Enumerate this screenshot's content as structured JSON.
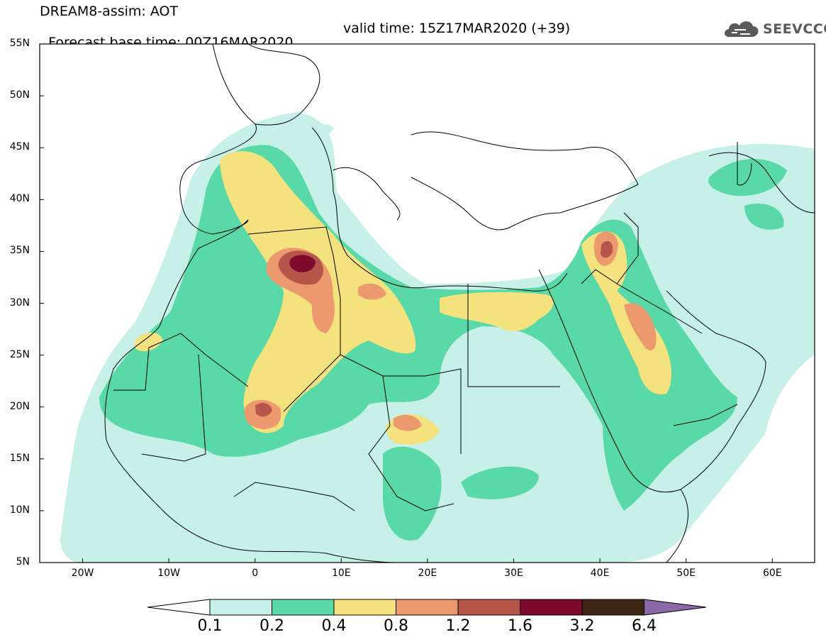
{
  "header": {
    "title_line1": "DREAM8-assim: AOT",
    "title_line2_left": "Forecast base time: 00Z16MAR2020",
    "title_line2_right": "valid time: 15Z17MAR2020 (+39)",
    "logo_text": "SEEVCCC",
    "logo_icon": "cloud-icon"
  },
  "map": {
    "lat_labels": [
      "55N",
      "50N",
      "45N",
      "40N",
      "35N",
      "30N",
      "25N",
      "20N",
      "15N",
      "10N",
      "5N"
    ],
    "lon_labels": [
      "20W",
      "10W",
      "0",
      "10E",
      "20E",
      "30E",
      "40E",
      "50E",
      "60E"
    ],
    "field": "Aerosol Optical Thickness"
  },
  "colorbar": {
    "labels": [
      "0.1",
      "0.2",
      "0.4",
      "0.8",
      "1.2",
      "1.6",
      "3.2",
      "6.4"
    ],
    "colors": [
      "#c6f0e8",
      "#5ad9a8",
      "#f3e27d",
      "#ec9970",
      "#b6554a",
      "#7e0a2c",
      "#3e2412",
      "#8a69a8"
    ],
    "low_extension_color": "#ffffff",
    "high_extension_color": "#8a69a8"
  }
}
